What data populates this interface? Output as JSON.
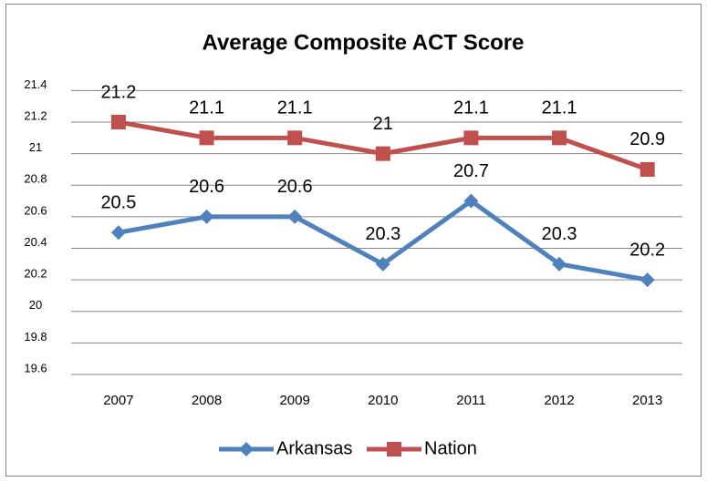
{
  "chart_data": {
    "type": "line",
    "title": "Average Composite ACT Score",
    "categories": [
      "2007",
      "2008",
      "2009",
      "2010",
      "2011",
      "2012",
      "2013"
    ],
    "series": [
      {
        "name": "Arkansas",
        "color": "#4f81bd",
        "marker": "diamond",
        "values": [
          20.5,
          20.6,
          20.6,
          20.3,
          20.7,
          20.3,
          20.2
        ]
      },
      {
        "name": "Nation",
        "color": "#c0504d",
        "marker": "square",
        "values": [
          21.2,
          21.1,
          21.1,
          21,
          21.1,
          21.1,
          20.9
        ]
      }
    ],
    "ylim": [
      19.6,
      21.4
    ],
    "yticks": [
      19.6,
      19.8,
      20,
      20.2,
      20.4,
      20.6,
      20.8,
      21,
      21.2,
      21.4
    ],
    "grid": true,
    "legend": "bottom"
  }
}
